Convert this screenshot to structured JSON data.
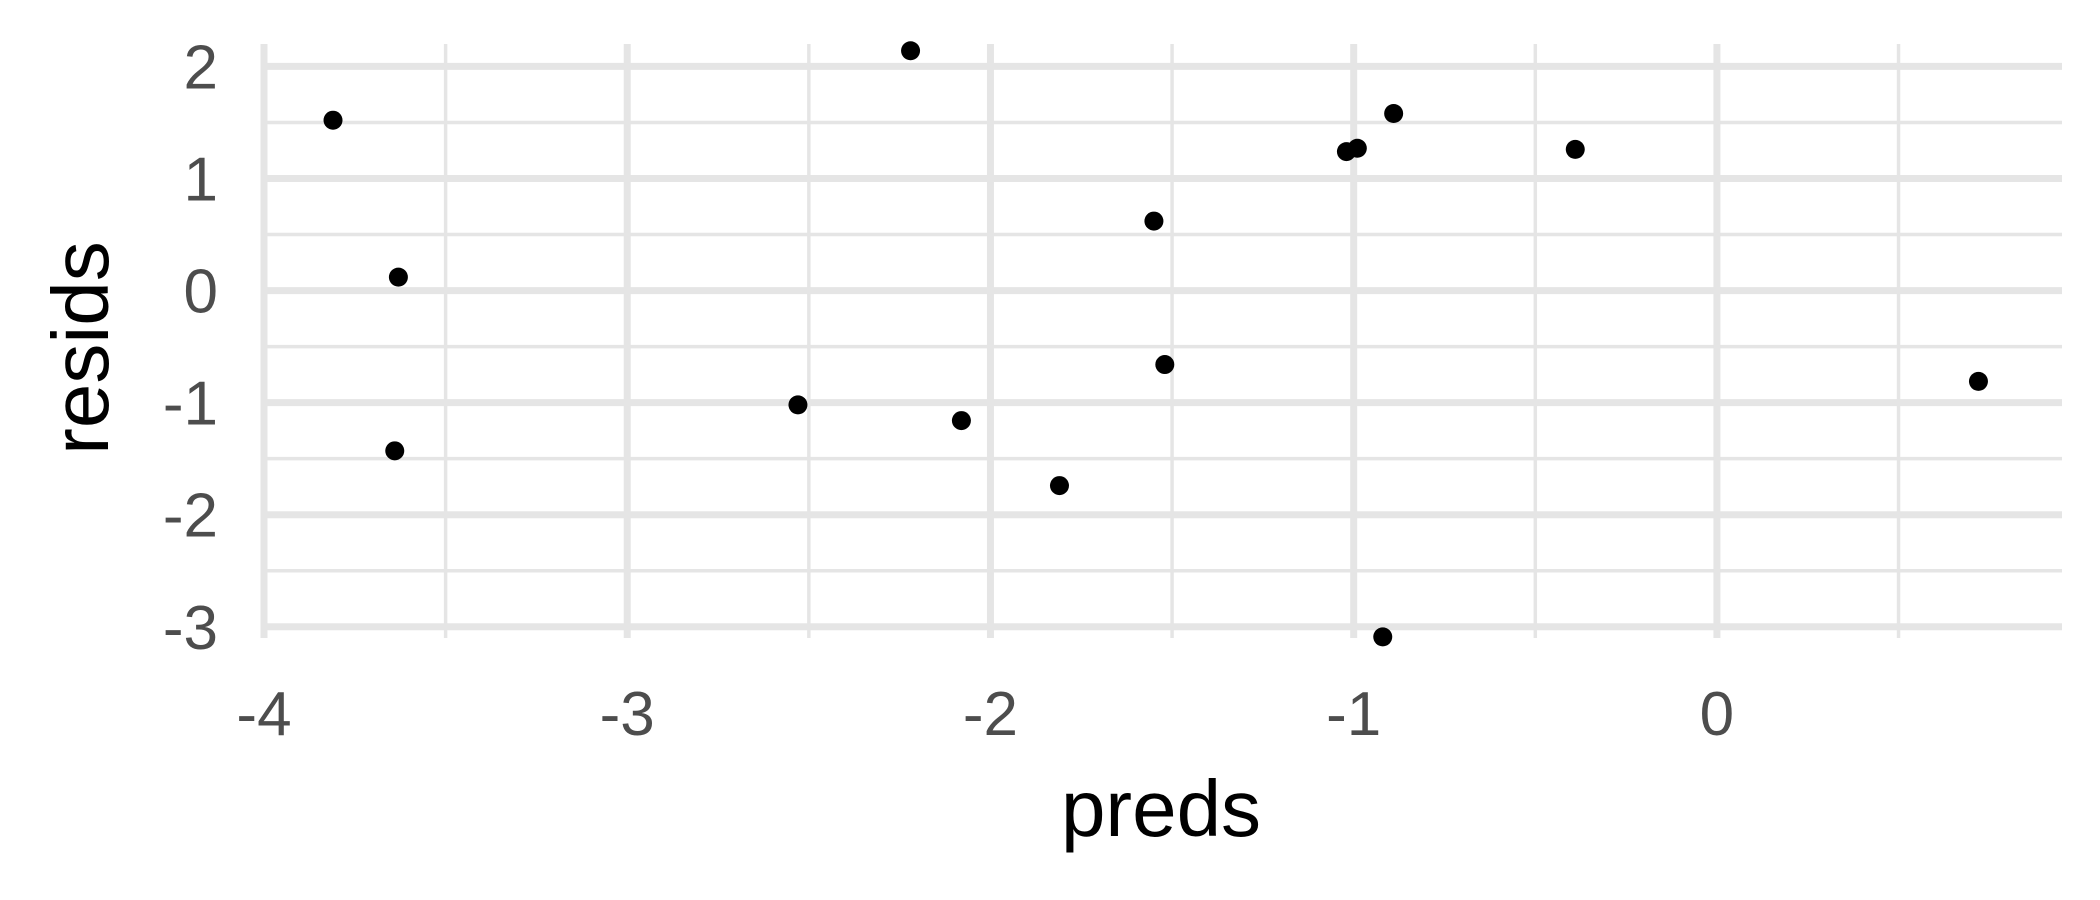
{
  "chart_data": {
    "type": "scatter",
    "title": "",
    "xlabel": "preds",
    "ylabel": "resids",
    "xlim": [
      -4.0,
      0.95
    ],
    "ylim": [
      -3.1,
      2.2
    ],
    "x_major_ticks": [
      -4,
      -3,
      -2,
      -1,
      0
    ],
    "x_tick_labels": [
      "-4",
      "-3",
      "-2",
      "-1",
      "0"
    ],
    "y_major_ticks": [
      -3,
      -2,
      -1,
      0,
      1,
      2
    ],
    "y_tick_labels": [
      "-3",
      "-2",
      "-1",
      "0",
      "1",
      "2"
    ],
    "x_minor_ticks": [
      -3.5,
      -2.5,
      -1.5,
      -0.5,
      0.5
    ],
    "y_minor_ticks": [
      -2.5,
      -1.5,
      -0.5,
      0.5,
      1.5
    ],
    "grid": true,
    "legend": "none",
    "colors": {
      "points": "#000000",
      "grid": "#e5e5e5",
      "tick_labels": "#4d4d4d",
      "background": "#ffffff"
    },
    "points": [
      {
        "x": -3.81,
        "y": 1.52
      },
      {
        "x": -3.63,
        "y": 0.12
      },
      {
        "x": -3.64,
        "y": -1.43
      },
      {
        "x": -2.53,
        "y": -1.02
      },
      {
        "x": -2.22,
        "y": 2.14
      },
      {
        "x": -2.08,
        "y": -1.16
      },
      {
        "x": -1.81,
        "y": -1.74
      },
      {
        "x": -1.55,
        "y": 0.62
      },
      {
        "x": -1.52,
        "y": -0.66
      },
      {
        "x": -1.02,
        "y": 1.24
      },
      {
        "x": -0.99,
        "y": 1.27
      },
      {
        "x": -0.89,
        "y": 1.58
      },
      {
        "x": -0.92,
        "y": -3.09
      },
      {
        "x": -0.39,
        "y": 1.26
      },
      {
        "x": 0.72,
        "y": -0.81
      }
    ]
  }
}
